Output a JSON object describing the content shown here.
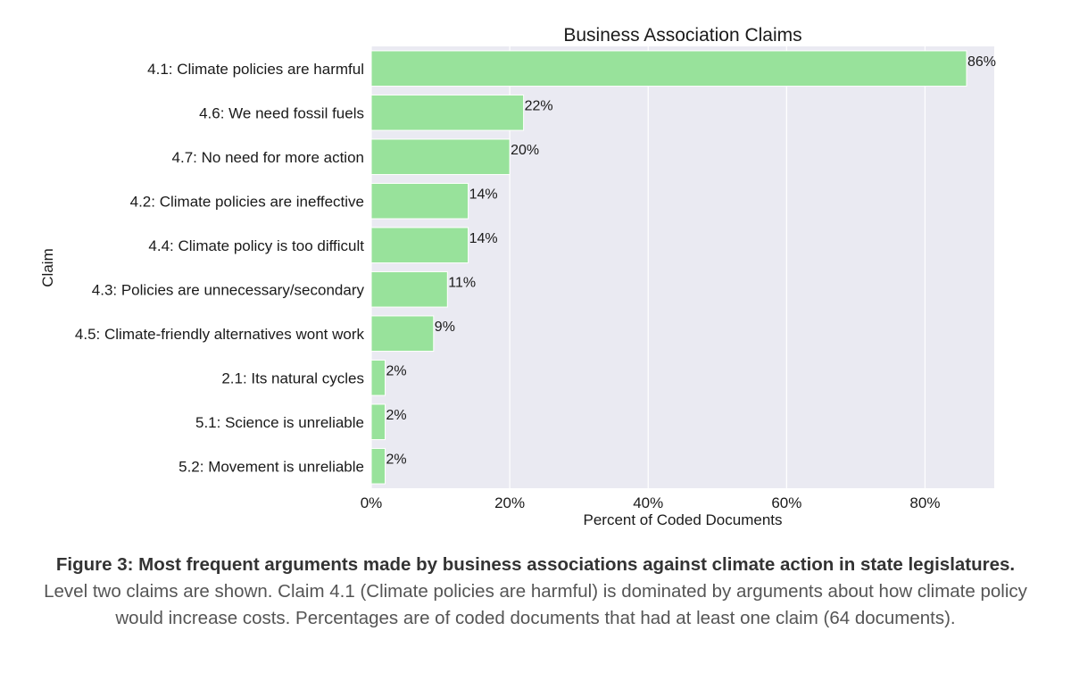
{
  "chart_data": {
    "type": "bar",
    "orientation": "horizontal",
    "title": "Business Association Claims",
    "xlabel": "Percent of Coded Documents",
    "ylabel": "Claim",
    "xlim": [
      0,
      90
    ],
    "xticks": [
      0,
      20,
      40,
      60,
      80
    ],
    "xtick_labels": [
      "0%",
      "20%",
      "40%",
      "60%",
      "80%"
    ],
    "grid": true,
    "bar_color": "#98e29b",
    "background_color": "#eaeaf2",
    "categories": [
      "4.1: Climate policies are harmful",
      "4.6: We need fossil fuels",
      "4.7: No need for more action",
      "4.2: Climate policies are ineffective",
      "4.4: Climate policy is too difficult",
      "4.3: Policies are unnecessary/secondary",
      "4.5: Climate-friendly alternatives wont work",
      "2.1: Its natural cycles",
      "5.1: Science is unreliable",
      "5.2: Movement is unreliable"
    ],
    "values": [
      86,
      22,
      20,
      14,
      14,
      11,
      9,
      2,
      2,
      2
    ],
    "value_labels": [
      "86%",
      "22%",
      "20%",
      "14%",
      "14%",
      "11%",
      "9%",
      "2%",
      "2%",
      "2%"
    ]
  },
  "caption": {
    "bold": "Figure 3: Most frequent arguments made by business associations against climate action in state legislatures.",
    "text": " Level two claims are shown. Claim 4.1 (Climate policies are harmful) is dominated by arguments about how climate policy would increase costs. Percentages are of coded documents that had at least one claim (64 documents)."
  }
}
